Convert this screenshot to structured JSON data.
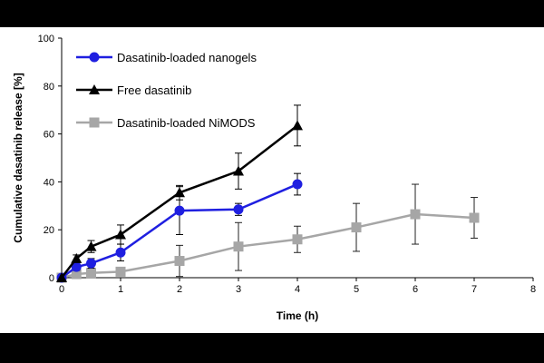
{
  "chart_data": {
    "type": "line",
    "title": "",
    "xlabel": "Time (h)",
    "ylabel": "Cumulative dasatinib release [%]",
    "xlim": [
      0,
      8
    ],
    "ylim": [
      0,
      100
    ],
    "xticks": [
      0,
      1,
      2,
      3,
      4,
      5,
      6,
      7,
      8
    ],
    "yticks": [
      0,
      20,
      40,
      60,
      80,
      100
    ],
    "grid": false,
    "legend_position": "top-left",
    "series": [
      {
        "name": "Dasatinib-loaded nanogels",
        "color": "#1f1fe0",
        "marker": "circle",
        "x": [
          0,
          0.25,
          0.5,
          1,
          2,
          3,
          4
        ],
        "y": [
          0,
          4.5,
          6,
          10.5,
          28,
          28.5,
          39
        ],
        "err": [
          0,
          1.5,
          2,
          3.5,
          10,
          2.5,
          4.5
        ]
      },
      {
        "name": "Free dasatinib",
        "color": "#000000",
        "marker": "triangle",
        "x": [
          0,
          0.25,
          0.5,
          1,
          2,
          3,
          4
        ],
        "y": [
          0,
          8,
          13,
          18,
          35.5,
          44.5,
          63.5
        ],
        "err": [
          0,
          1.5,
          2.5,
          4,
          3,
          7.5,
          8.5
        ]
      },
      {
        "name": "Dasatinib-loaded NiMODS",
        "color": "#a6a6a6",
        "marker": "square",
        "x": [
          0,
          0.25,
          0.5,
          1,
          2,
          3,
          4,
          5,
          6,
          7
        ],
        "y": [
          0,
          1.5,
          2,
          2.5,
          7,
          13,
          16,
          21,
          26.5,
          25
        ],
        "err": [
          0,
          0.5,
          1,
          1,
          6.5,
          10,
          5.5,
          10,
          12.5,
          8.5
        ]
      }
    ]
  }
}
